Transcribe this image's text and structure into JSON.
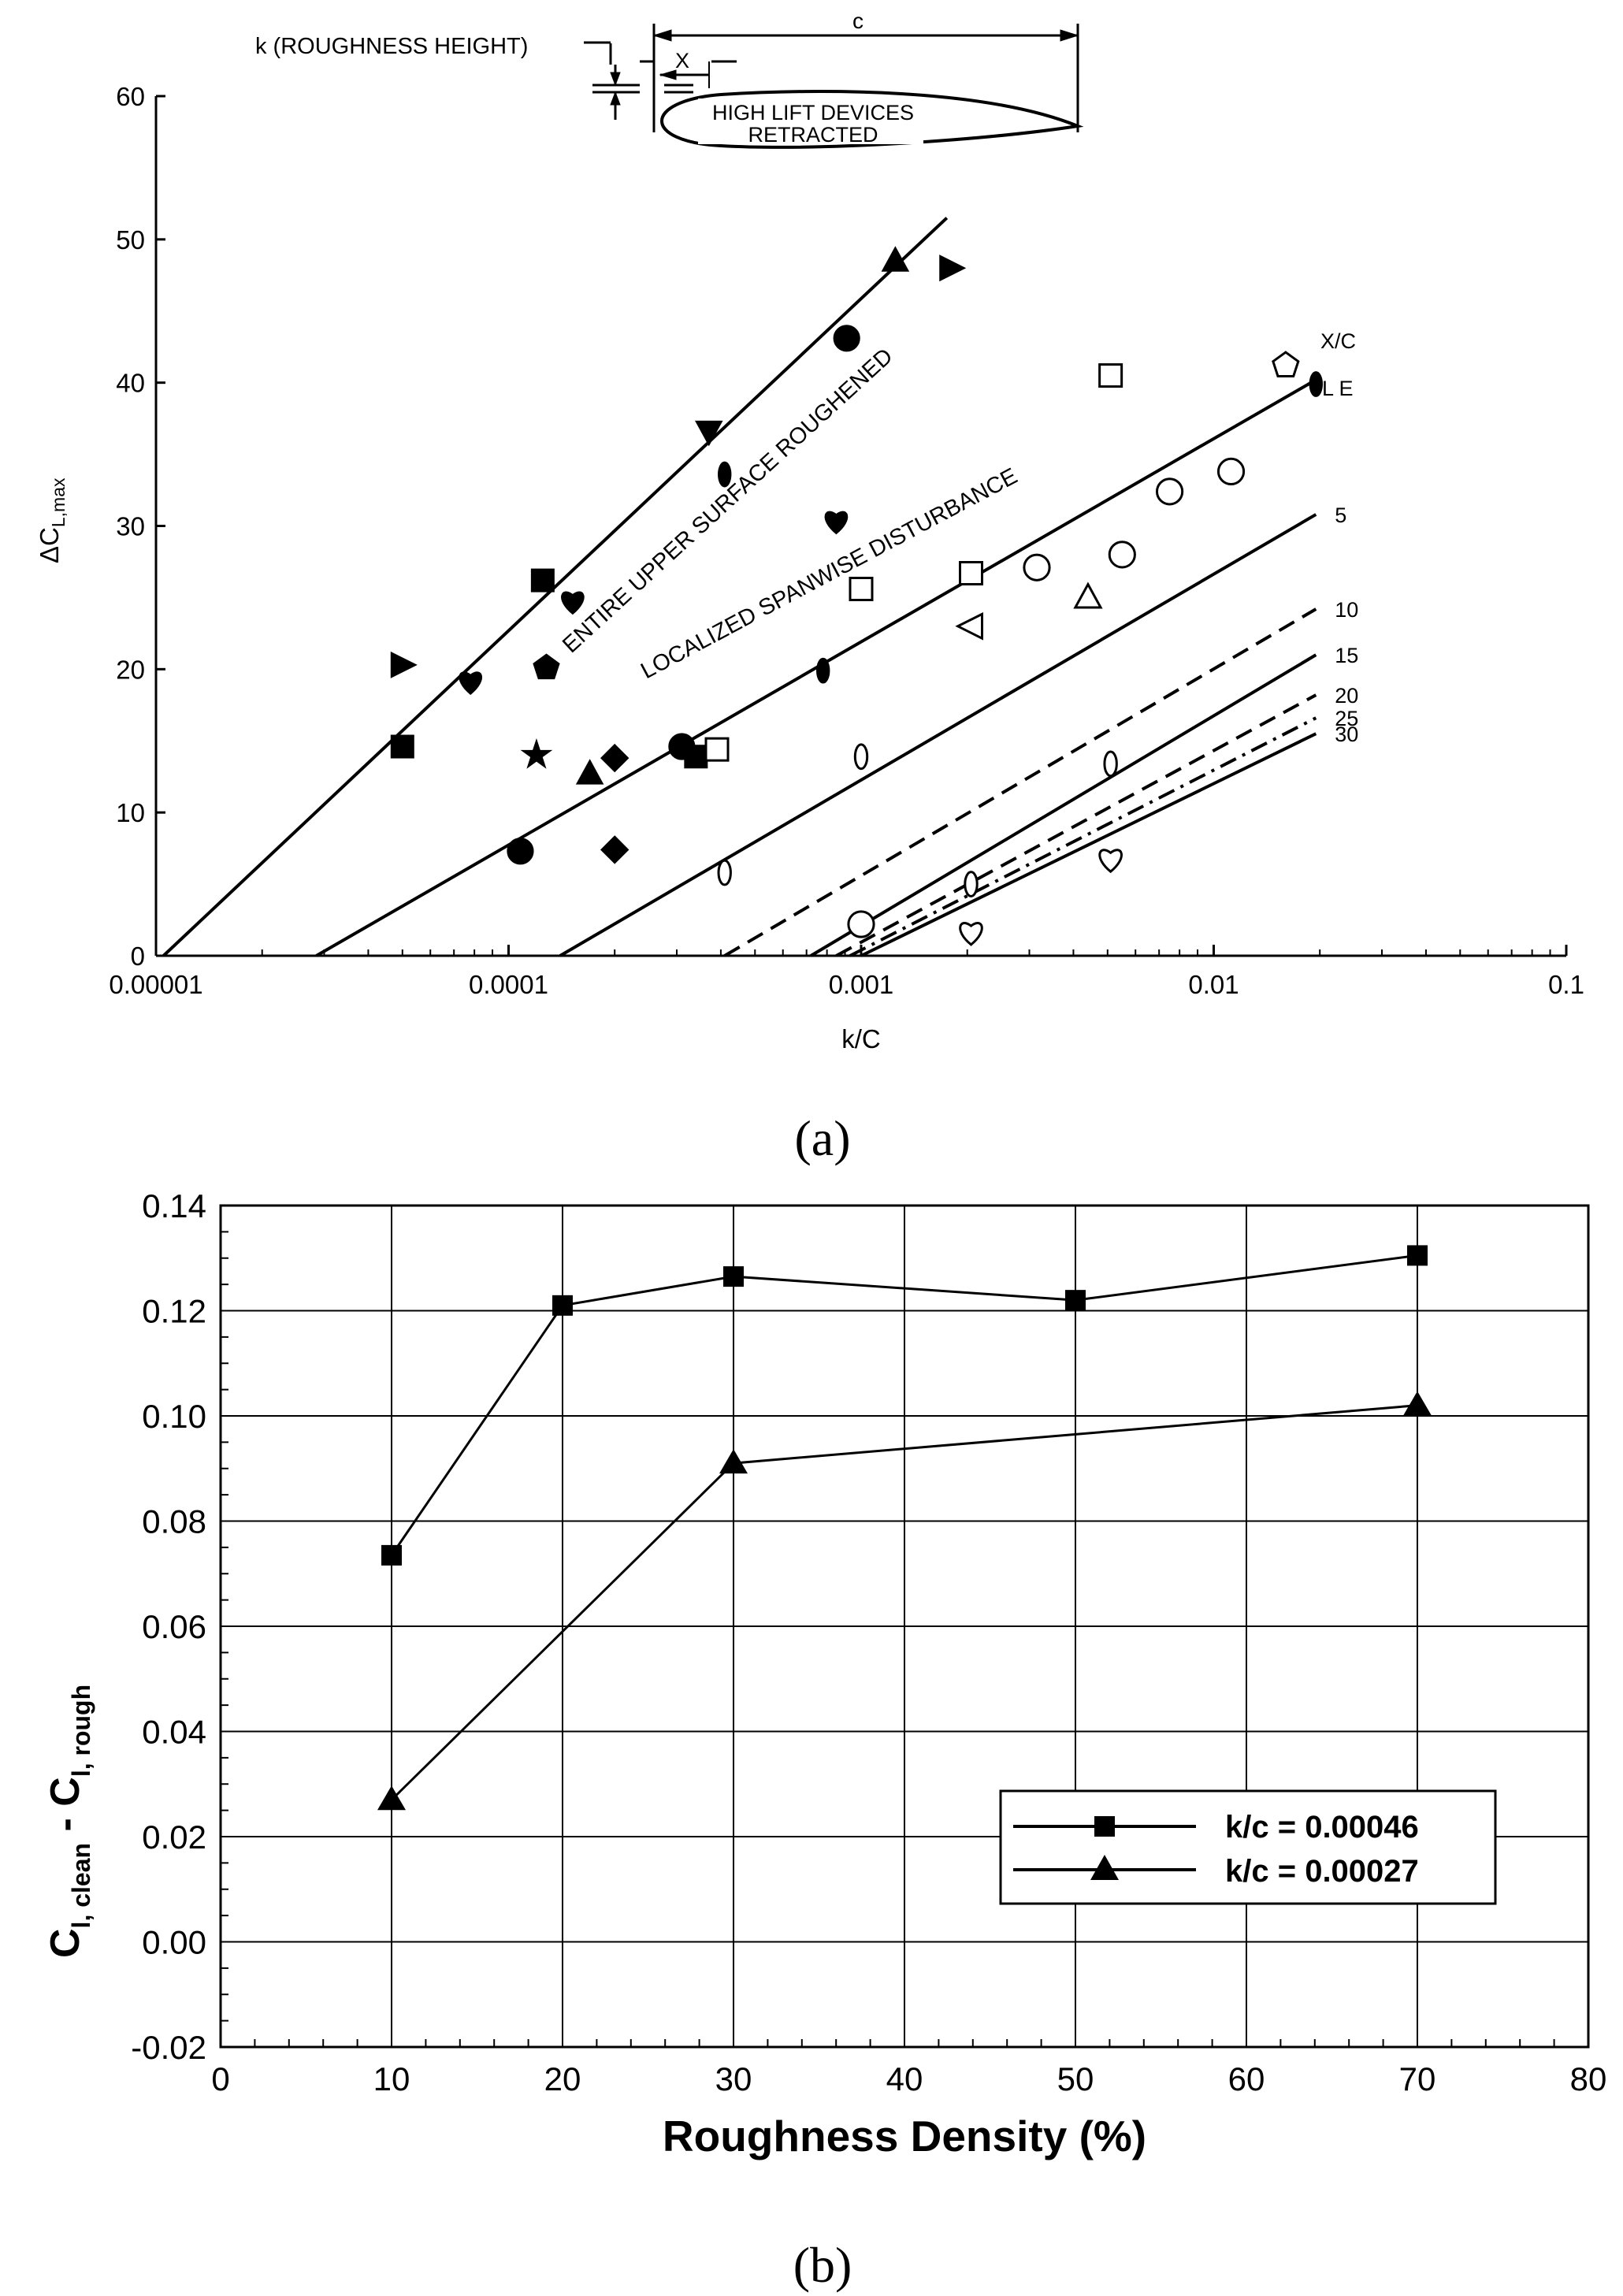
{
  "chart_data": [
    {
      "id": "a",
      "type": "line",
      "caption": "(a)",
      "xscale": "log",
      "xlabel": "k/C",
      "ylabel_main": "ΔC",
      "ylabel_sub": "L,max",
      "xlim": [
        1e-05,
        0.1
      ],
      "ylim": [
        0,
        60
      ],
      "xticks": [
        1e-05,
        0.0001,
        0.001,
        0.01,
        0.1
      ],
      "xtick_labels": [
        "0.00001",
        "0.0001",
        "0.001",
        "0.01",
        "0.1"
      ],
      "yticks": [
        0,
        10,
        20,
        30,
        40,
        50,
        60
      ],
      "ytick_labels": [
        "0",
        "10",
        "20",
        "30",
        "40",
        "50",
        "60"
      ],
      "annotations": {
        "entire": "ENTIRE UPPER SURFACE ROUGHENED",
        "localized": "LOCALIZED SPANWISE DISTURBANCE",
        "xc_header": "X/C",
        "le": "L E"
      },
      "inset": {
        "roughness": "k (ROUGHNESS HEIGHT)",
        "chord": "c",
        "x": "X",
        "devices_line1": "HIGH LIFT DEVICES",
        "devices_line2": "RETRACTED"
      },
      "series": [
        {
          "name": "Entire upper surface roughened",
          "style": "solid",
          "x": [
            1.05e-05,
            0.00175
          ],
          "y": [
            0,
            51.5
          ]
        },
        {
          "name": "L E",
          "label": "L E",
          "style": "solid",
          "x": [
            2.85e-05,
            0.0195
          ],
          "y": [
            0,
            40.2
          ]
        },
        {
          "name": "5",
          "label": "5",
          "style": "solid",
          "x": [
            0.00014,
            0.0195
          ],
          "y": [
            0,
            30.8
          ]
        },
        {
          "name": "10",
          "label": "10",
          "style": "dashed",
          "x": [
            0.00041,
            0.0195
          ],
          "y": [
            0,
            24.2
          ]
        },
        {
          "name": "15",
          "label": "15",
          "style": "solid",
          "x": [
            0.00072,
            0.0195
          ],
          "y": [
            0,
            21.0
          ]
        },
        {
          "name": "20",
          "label": "20",
          "style": "dashed",
          "x": [
            0.00085,
            0.0195
          ],
          "y": [
            0,
            18.2
          ]
        },
        {
          "name": "25",
          "label": "25",
          "style": "dashdot",
          "x": [
            0.00093,
            0.0195
          ],
          "y": [
            0,
            16.6
          ]
        },
        {
          "name": "30",
          "label": "30",
          "style": "solid",
          "x": [
            0.001,
            0.0195
          ],
          "y": [
            0,
            15.5
          ]
        }
      ],
      "points_filled": [
        {
          "x": 5e-05,
          "y": 14.6,
          "m": "square"
        },
        {
          "x": 5e-05,
          "y": 20.3,
          "m": "triangle-right"
        },
        {
          "x": 7.8e-05,
          "y": 19.2,
          "m": "heart"
        },
        {
          "x": 0.000108,
          "y": 7.3,
          "m": "circle"
        },
        {
          "x": 0.00012,
          "y": 14.0,
          "m": "star"
        },
        {
          "x": 0.000125,
          "y": 26.2,
          "m": "square"
        },
        {
          "x": 0.000128,
          "y": 20.1,
          "m": "pentagon"
        },
        {
          "x": 0.000152,
          "y": 24.8,
          "m": "heart"
        },
        {
          "x": 0.00017,
          "y": 12.7,
          "m": "triangle-up"
        },
        {
          "x": 0.0002,
          "y": 13.8,
          "m": "diamond"
        },
        {
          "x": 0.0002,
          "y": 7.4,
          "m": "diamond"
        },
        {
          "x": 0.00031,
          "y": 14.6,
          "m": "circle"
        },
        {
          "x": 0.00034,
          "y": 13.9,
          "m": "square"
        },
        {
          "x": 0.00037,
          "y": 36.6,
          "m": "triangle-down"
        },
        {
          "x": 0.00041,
          "y": 33.6,
          "m": "ellipse"
        },
        {
          "x": 0.00078,
          "y": 19.9,
          "m": "ellipse"
        },
        {
          "x": 0.00085,
          "y": 30.4,
          "m": "heart"
        },
        {
          "x": 0.00091,
          "y": 43.1,
          "m": "circle"
        },
        {
          "x": 0.00125,
          "y": 48.5,
          "m": "triangle-up"
        },
        {
          "x": 0.0018,
          "y": 48.0,
          "m": "triangle-right"
        },
        {
          "x": 0.0195,
          "y": 39.9,
          "m": "ellipse"
        }
      ],
      "points_open": [
        {
          "x": 0.00039,
          "y": 14.4,
          "m": "square"
        },
        {
          "x": 0.00041,
          "y": 5.8,
          "m": "ellipse"
        },
        {
          "x": 0.001,
          "y": 25.6,
          "m": "square"
        },
        {
          "x": 0.001,
          "y": 13.9,
          "m": "ellipse"
        },
        {
          "x": 0.001,
          "y": 2.2,
          "m": "circle"
        },
        {
          "x": 0.00205,
          "y": 26.7,
          "m": "square"
        },
        {
          "x": 0.00205,
          "y": 23.0,
          "m": "triangle-left"
        },
        {
          "x": 0.00205,
          "y": 5.0,
          "m": "ellipse"
        },
        {
          "x": 0.00205,
          "y": 1.7,
          "m": "heart"
        },
        {
          "x": 0.00315,
          "y": 27.1,
          "m": "circle"
        },
        {
          "x": 0.0044,
          "y": 25.0,
          "m": "triangle-up"
        },
        {
          "x": 0.0051,
          "y": 40.5,
          "m": "square"
        },
        {
          "x": 0.0051,
          "y": 13.4,
          "m": "ellipse"
        },
        {
          "x": 0.0051,
          "y": 6.8,
          "m": "heart"
        },
        {
          "x": 0.0055,
          "y": 28.0,
          "m": "circle"
        },
        {
          "x": 0.0075,
          "y": 32.4,
          "m": "circle"
        },
        {
          "x": 0.0112,
          "y": 33.8,
          "m": "circle"
        },
        {
          "x": 0.016,
          "y": 41.2,
          "m": "pentagon"
        }
      ]
    },
    {
      "id": "b",
      "type": "line",
      "caption": "(b)",
      "xlabel": "Roughness Density (%)",
      "ylabel_main": "C",
      "ylabel_sub1": "l, clean",
      "ylabel_mid": " - C",
      "ylabel_sub2": "l, rough",
      "xlim": [
        0,
        80
      ],
      "ylim": [
        -0.02,
        0.14
      ],
      "xticks": [
        0,
        10,
        20,
        30,
        40,
        50,
        60,
        70,
        80
      ],
      "xtick_labels": [
        "0",
        "10",
        "20",
        "30",
        "40",
        "50",
        "60",
        "70",
        "80"
      ],
      "yticks": [
        -0.02,
        0.0,
        0.02,
        0.04,
        0.06,
        0.08,
        0.1,
        0.12,
        0.14
      ],
      "ytick_labels": [
        "-0.02",
        "0.00",
        "0.02",
        "0.04",
        "0.06",
        "0.08",
        "0.10",
        "0.12",
        "0.14"
      ],
      "grid": true,
      "legend_position": "lower-right",
      "series": [
        {
          "name": "k/c = 0.00046",
          "marker": "square",
          "x": [
            10,
            20,
            30,
            50,
            70
          ],
          "y": [
            0.0735,
            0.121,
            0.1265,
            0.122,
            0.1305
          ]
        },
        {
          "name": "k/c = 0.00027",
          "marker": "triangle",
          "x": [
            10,
            30,
            70
          ],
          "y": [
            0.027,
            0.091,
            0.102
          ]
        }
      ]
    }
  ]
}
